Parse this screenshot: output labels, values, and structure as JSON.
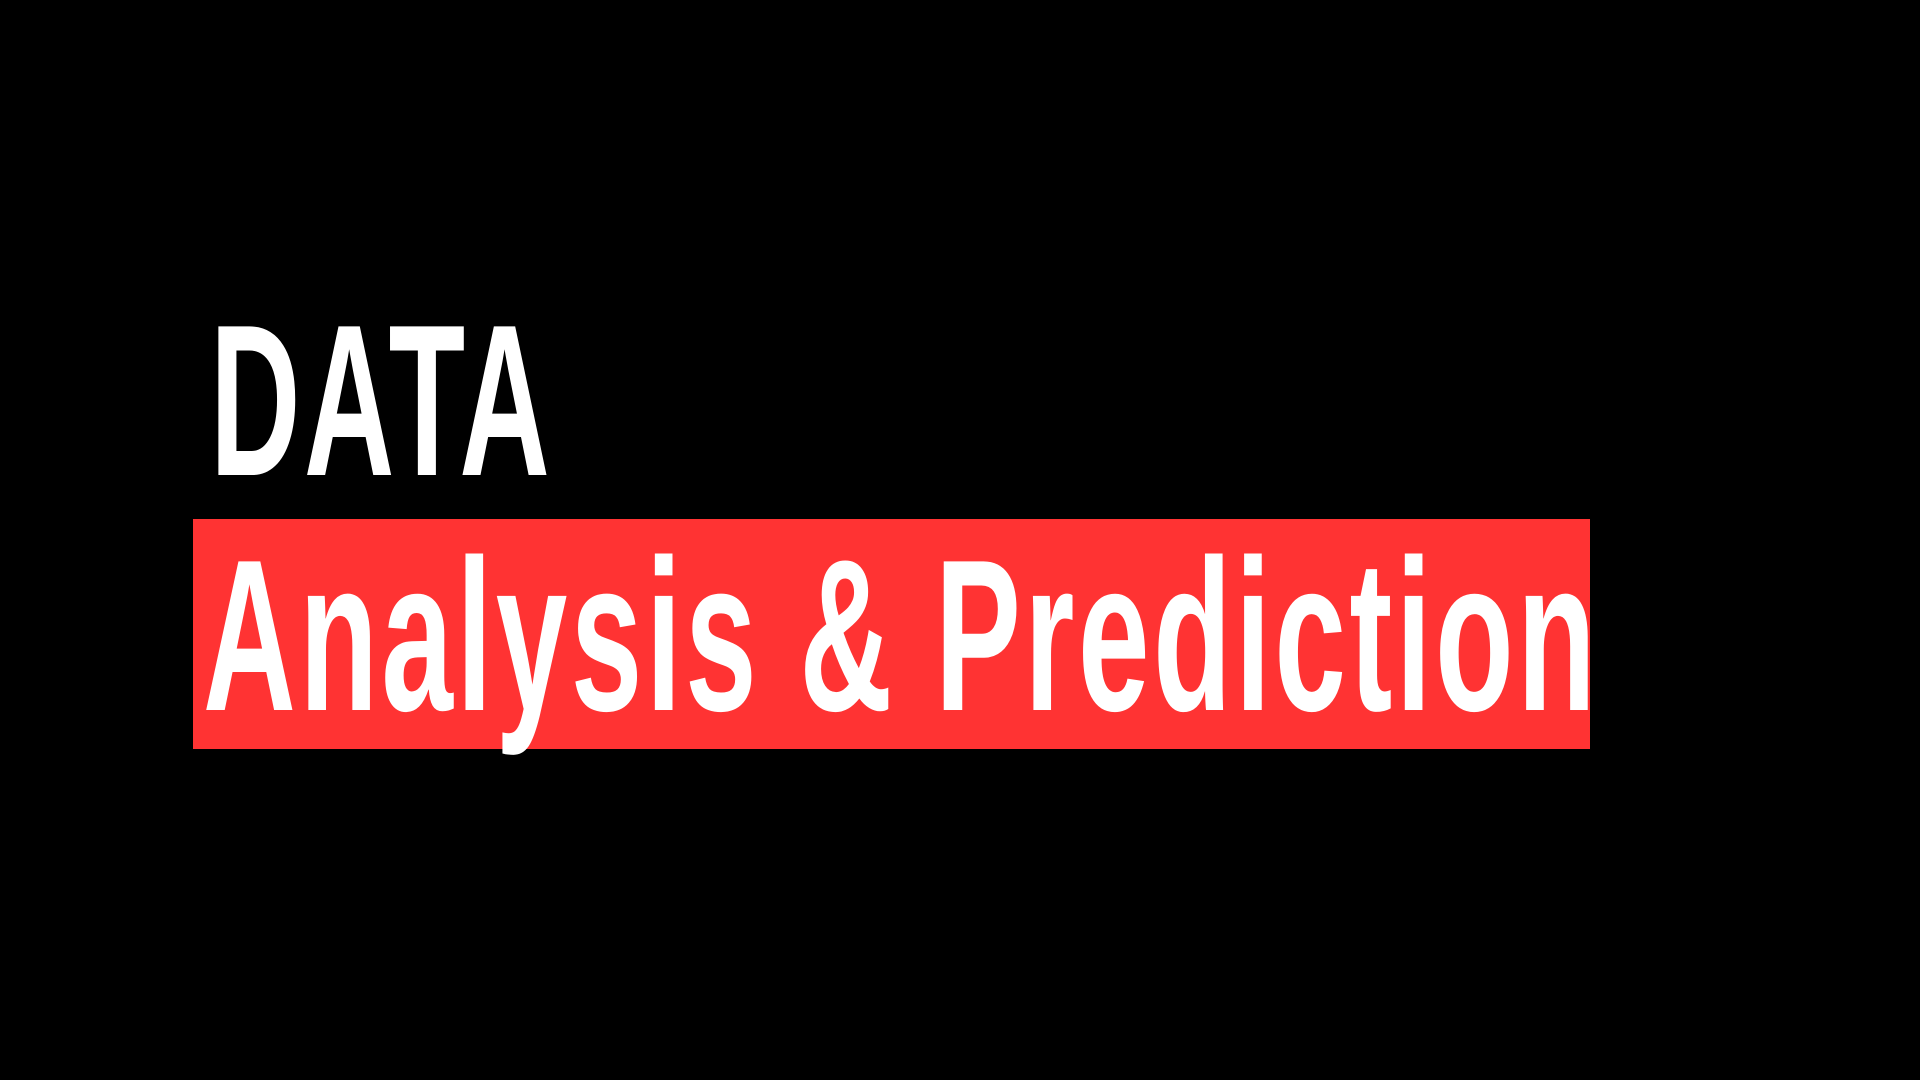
{
  "heading": {
    "line1": "DATA",
    "line2": "Analysis & Prediction"
  },
  "colors": {
    "background": "#000000",
    "text": "#ffffff",
    "highlight": "#ff3333"
  }
}
